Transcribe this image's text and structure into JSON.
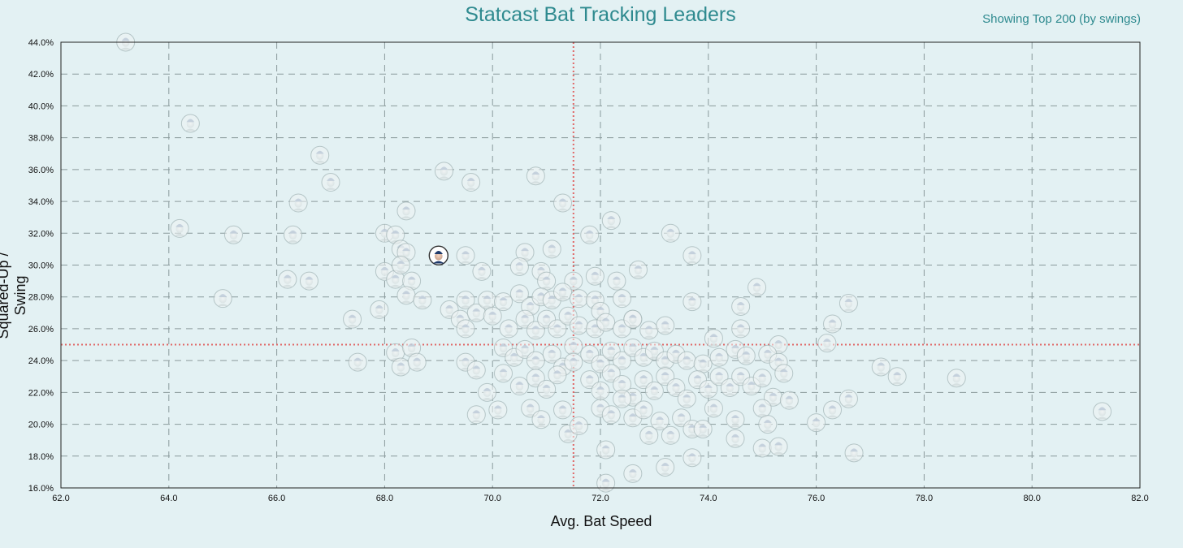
{
  "chart_data": {
    "type": "scatter",
    "title": "Statcast Bat Tracking Leaders",
    "subtitle": "Showing Top 200 (by swings)",
    "xlabel": "Avg. Bat Speed",
    "ylabel": "Squared-Up / Swing",
    "xlim": [
      62.0,
      82.0
    ],
    "ylim": [
      16.0,
      44.0
    ],
    "x_ticks": [
      "62.0",
      "64.0",
      "66.0",
      "68.0",
      "70.0",
      "72.0",
      "74.0",
      "76.0",
      "78.0",
      "80.0",
      "82.0"
    ],
    "y_ticks": [
      "16.0%",
      "18.0%",
      "20.0%",
      "22.0%",
      "24.0%",
      "26.0%",
      "28.0%",
      "30.0%",
      "32.0%",
      "34.0%",
      "36.0%",
      "38.0%",
      "40.0%",
      "42.0%",
      "44.0%"
    ],
    "grid": true,
    "reference_lines": {
      "x": 71.5,
      "y": 25.0
    },
    "highlighted_point": {
      "x": 69.0,
      "y": 30.6
    },
    "points": [
      [
        63.2,
        44.0
      ],
      [
        64.4,
        38.9
      ],
      [
        66.8,
        36.9
      ],
      [
        67.0,
        35.2
      ],
      [
        69.1,
        35.9
      ],
      [
        69.6,
        35.2
      ],
      [
        70.8,
        35.6
      ],
      [
        66.4,
        33.9
      ],
      [
        68.4,
        33.4
      ],
      [
        71.3,
        33.9
      ],
      [
        72.2,
        32.8
      ],
      [
        64.2,
        32.3
      ],
      [
        65.2,
        31.9
      ],
      [
        66.3,
        31.9
      ],
      [
        68.0,
        32.0
      ],
      [
        68.2,
        31.9
      ],
      [
        68.3,
        31.0
      ],
      [
        68.4,
        30.8
      ],
      [
        69.5,
        30.6
      ],
      [
        70.6,
        30.8
      ],
      [
        71.1,
        31.0
      ],
      [
        71.8,
        31.9
      ],
      [
        73.3,
        32.0
      ],
      [
        73.7,
        30.6
      ],
      [
        66.2,
        29.1
      ],
      [
        66.6,
        29.0
      ],
      [
        68.0,
        29.6
      ],
      [
        68.2,
        29.1
      ],
      [
        68.3,
        30.0
      ],
      [
        68.5,
        29.0
      ],
      [
        69.8,
        29.6
      ],
      [
        70.5,
        29.9
      ],
      [
        70.9,
        29.6
      ],
      [
        71.0,
        29.0
      ],
      [
        71.5,
        29.0
      ],
      [
        72.3,
        29.0
      ],
      [
        72.7,
        29.7
      ],
      [
        71.9,
        29.3
      ],
      [
        65.0,
        27.9
      ],
      [
        67.4,
        26.6
      ],
      [
        67.9,
        27.2
      ],
      [
        68.4,
        28.1
      ],
      [
        68.7,
        27.8
      ],
      [
        69.2,
        27.2
      ],
      [
        69.4,
        26.6
      ],
      [
        69.5,
        27.8
      ],
      [
        69.7,
        27.0
      ],
      [
        69.9,
        27.8
      ],
      [
        70.2,
        27.7
      ],
      [
        70.5,
        28.2
      ],
      [
        70.7,
        27.4
      ],
      [
        70.9,
        28.0
      ],
      [
        71.1,
        27.8
      ],
      [
        71.3,
        28.3
      ],
      [
        71.6,
        27.9
      ],
      [
        71.9,
        27.8
      ],
      [
        72.0,
        27.1
      ],
      [
        72.4,
        27.9
      ],
      [
        72.6,
        26.6
      ],
      [
        73.7,
        27.7
      ],
      [
        74.6,
        27.4
      ],
      [
        74.9,
        28.6
      ],
      [
        76.6,
        27.6
      ],
      [
        69.5,
        26.0
      ],
      [
        70.0,
        26.8
      ],
      [
        70.3,
        26.0
      ],
      [
        70.6,
        26.6
      ],
      [
        70.8,
        25.9
      ],
      [
        71.0,
        26.6
      ],
      [
        71.2,
        26.0
      ],
      [
        71.4,
        26.8
      ],
      [
        71.6,
        26.2
      ],
      [
        71.9,
        26.0
      ],
      [
        72.1,
        26.4
      ],
      [
        72.4,
        26.0
      ],
      [
        72.6,
        26.6
      ],
      [
        72.9,
        25.9
      ],
      [
        73.2,
        26.2
      ],
      [
        74.1,
        25.4
      ],
      [
        74.6,
        26.0
      ],
      [
        75.3,
        25.0
      ],
      [
        76.3,
        26.3
      ],
      [
        76.2,
        25.1
      ],
      [
        67.5,
        23.9
      ],
      [
        68.2,
        24.5
      ],
      [
        68.3,
        23.6
      ],
      [
        68.5,
        24.8
      ],
      [
        68.6,
        23.9
      ],
      [
        69.5,
        23.9
      ],
      [
        69.7,
        23.4
      ],
      [
        70.2,
        24.8
      ],
      [
        70.4,
        24.2
      ],
      [
        70.6,
        24.7
      ],
      [
        70.8,
        24.0
      ],
      [
        71.1,
        24.4
      ],
      [
        71.3,
        23.6
      ],
      [
        71.5,
        24.9
      ],
      [
        71.5,
        23.9
      ],
      [
        71.8,
        24.4
      ],
      [
        72.0,
        23.8
      ],
      [
        72.2,
        24.6
      ],
      [
        72.4,
        24.0
      ],
      [
        72.6,
        24.8
      ],
      [
        72.8,
        24.2
      ],
      [
        73.0,
        24.6
      ],
      [
        73.2,
        24.0
      ],
      [
        73.4,
        24.4
      ],
      [
        73.6,
        24.0
      ],
      [
        73.9,
        23.8
      ],
      [
        74.2,
        24.2
      ],
      [
        74.5,
        24.7
      ],
      [
        74.7,
        24.3
      ],
      [
        75.1,
        24.4
      ],
      [
        75.3,
        23.9
      ],
      [
        69.9,
        22.0
      ],
      [
        70.2,
        23.2
      ],
      [
        70.5,
        22.4
      ],
      [
        70.8,
        22.9
      ],
      [
        71.0,
        22.2
      ],
      [
        71.2,
        23.1
      ],
      [
        71.8,
        22.8
      ],
      [
        72.0,
        22.1
      ],
      [
        72.2,
        23.2
      ],
      [
        72.4,
        22.5
      ],
      [
        72.6,
        21.7
      ],
      [
        72.8,
        22.8
      ],
      [
        73.0,
        22.1
      ],
      [
        73.2,
        23.0
      ],
      [
        73.4,
        22.3
      ],
      [
        73.6,
        21.6
      ],
      [
        73.8,
        22.8
      ],
      [
        74.0,
        22.2
      ],
      [
        74.2,
        23.0
      ],
      [
        74.4,
        22.3
      ],
      [
        74.6,
        23.0
      ],
      [
        74.8,
        22.4
      ],
      [
        75.0,
        22.9
      ],
      [
        75.2,
        21.7
      ],
      [
        75.4,
        23.2
      ],
      [
        75.5,
        21.5
      ],
      [
        76.6,
        21.6
      ],
      [
        77.2,
        23.6
      ],
      [
        77.5,
        23.0
      ],
      [
        78.6,
        22.9
      ],
      [
        69.7,
        20.6
      ],
      [
        70.1,
        20.9
      ],
      [
        70.7,
        21.0
      ],
      [
        70.9,
        20.3
      ],
      [
        71.3,
        20.9
      ],
      [
        71.4,
        19.4
      ],
      [
        71.6,
        19.9
      ],
      [
        72.0,
        21.0
      ],
      [
        72.2,
        20.6
      ],
      [
        72.4,
        21.6
      ],
      [
        72.6,
        20.4
      ],
      [
        72.8,
        20.9
      ],
      [
        72.9,
        19.3
      ],
      [
        73.1,
        20.2
      ],
      [
        73.3,
        19.3
      ],
      [
        73.5,
        20.4
      ],
      [
        73.7,
        19.7
      ],
      [
        73.9,
        19.7
      ],
      [
        74.1,
        21.0
      ],
      [
        74.5,
        20.3
      ],
      [
        74.5,
        19.1
      ],
      [
        75.0,
        21.0
      ],
      [
        75.1,
        20.0
      ],
      [
        76.0,
        20.1
      ],
      [
        76.3,
        20.9
      ],
      [
        81.3,
        20.8
      ],
      [
        72.1,
        18.4
      ],
      [
        73.7,
        17.9
      ],
      [
        75.0,
        18.5
      ],
      [
        75.3,
        18.6
      ],
      [
        76.7,
        18.2
      ],
      [
        72.6,
        16.9
      ],
      [
        73.2,
        17.3
      ],
      [
        72.1,
        16.3
      ]
    ]
  }
}
